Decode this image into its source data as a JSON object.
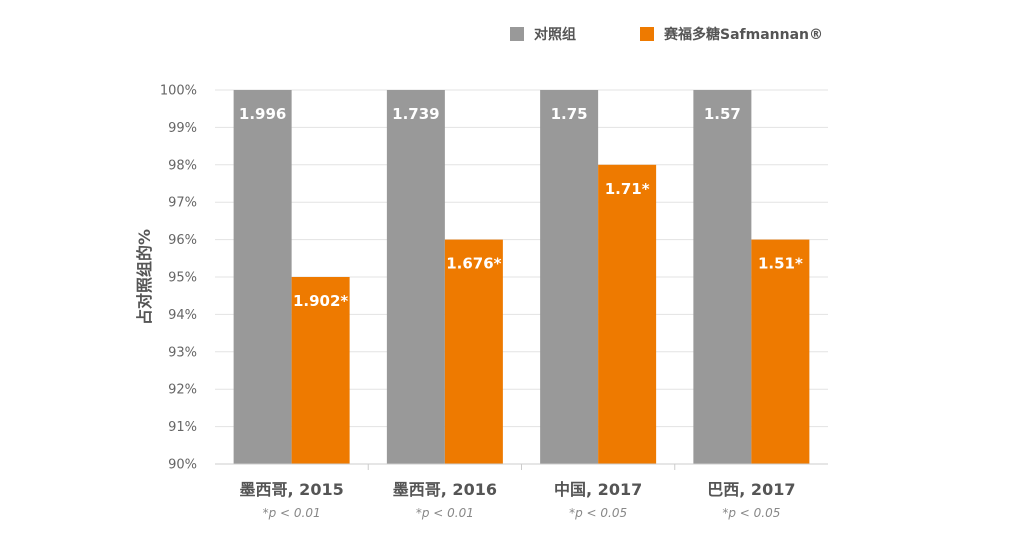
{
  "chart_data": {
    "type": "bar",
    "ylabel": "占对照组的%",
    "ylim": [
      90,
      100
    ],
    "y_ticks": [
      90,
      91,
      92,
      93,
      94,
      95,
      96,
      97,
      98,
      99,
      100
    ],
    "y_tick_suffix": "%",
    "grid": true,
    "legend_position": "top-right",
    "categories": [
      "墨西哥, 2015",
      "墨西哥, 2016",
      "中国, 2017",
      "巴西, 2017"
    ],
    "category_notes": [
      "*p < 0.01",
      "*p < 0.01",
      "*p < 0.05",
      "*p < 0.05"
    ],
    "series": [
      {
        "name": "对照组",
        "color": "#999999",
        "values": [
          100,
          100,
          100,
          100
        ],
        "data_labels": [
          "1.996",
          "1.739",
          "1.75",
          "1.57"
        ]
      },
      {
        "name": "赛福多糖Safmannan®",
        "color": "#EE7A00",
        "values": [
          95,
          96,
          98,
          96
        ],
        "data_labels": [
          "1.902*",
          "1.676*",
          "1.71*",
          "1.51*"
        ]
      }
    ]
  }
}
